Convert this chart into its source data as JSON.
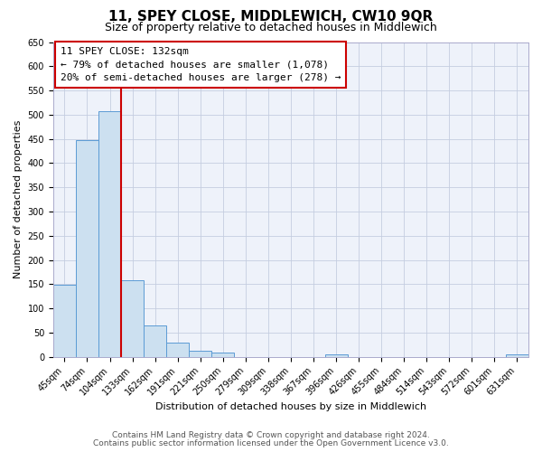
{
  "title": "11, SPEY CLOSE, MIDDLEWICH, CW10 9QR",
  "subtitle": "Size of property relative to detached houses in Middlewich",
  "xlabel": "Distribution of detached houses by size in Middlewich",
  "ylabel": "Number of detached properties",
  "bin_labels": [
    "45sqm",
    "74sqm",
    "104sqm",
    "133sqm",
    "162sqm",
    "191sqm",
    "221sqm",
    "250sqm",
    "279sqm",
    "309sqm",
    "338sqm",
    "367sqm",
    "396sqm",
    "426sqm",
    "455sqm",
    "484sqm",
    "514sqm",
    "543sqm",
    "572sqm",
    "601sqm",
    "631sqm"
  ],
  "bar_heights": [
    148,
    448,
    507,
    158,
    65,
    30,
    12,
    8,
    0,
    0,
    0,
    0,
    5,
    0,
    0,
    0,
    0,
    0,
    0,
    0,
    5
  ],
  "bar_color": "#cce0f0",
  "bar_edge_color": "#5b9bd5",
  "vline_color": "#cc0000",
  "vline_position": 2.5,
  "ylim": [
    0,
    650
  ],
  "yticks": [
    0,
    50,
    100,
    150,
    200,
    250,
    300,
    350,
    400,
    450,
    500,
    550,
    600,
    650
  ],
  "annotation_title": "11 SPEY CLOSE: 132sqm",
  "annotation_line1": "← 79% of detached houses are smaller (1,078)",
  "annotation_line2": "20% of semi-detached houses are larger (278) →",
  "annotation_box_color": "#cc0000",
  "footer1": "Contains HM Land Registry data © Crown copyright and database right 2024.",
  "footer2": "Contains public sector information licensed under the Open Government Licence v3.0.",
  "bg_color": "#eef2fa",
  "grid_color": "#c5cde0",
  "title_fontsize": 11,
  "subtitle_fontsize": 9,
  "axis_label_fontsize": 8,
  "tick_fontsize": 7,
  "annotation_fontsize": 8,
  "footer_fontsize": 6.5
}
